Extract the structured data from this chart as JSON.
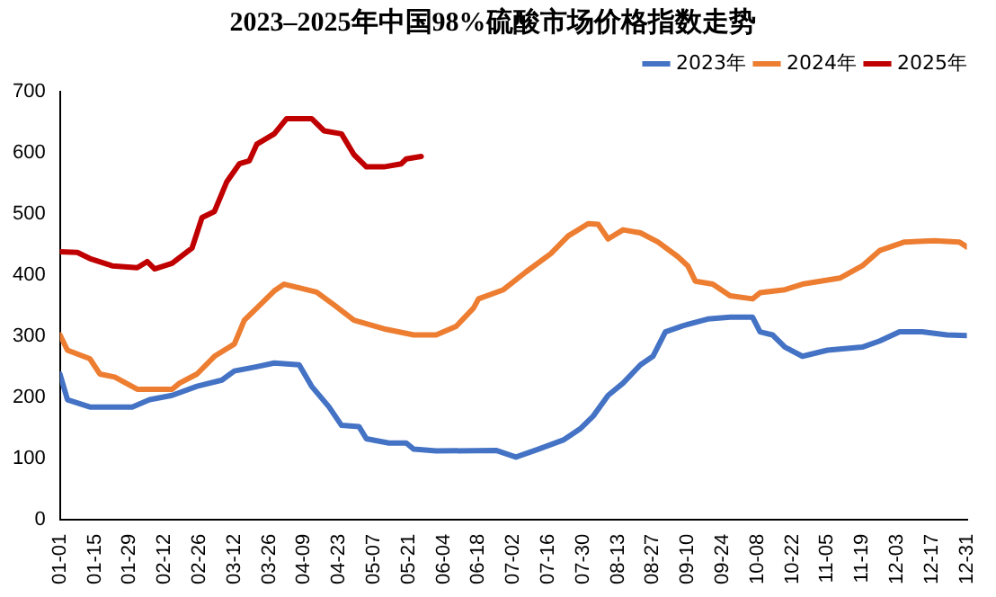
{
  "chart_data": {
    "type": "line",
    "title": "2023–2025年中国98%硫酸市场价格指数走势",
    "xlim": [
      "--01-01",
      "--12-31"
    ],
    "xticks": [
      {
        "value": "--01-01",
        "label": "01-01"
      },
      {
        "value": "--01-15",
        "label": "01-15"
      },
      {
        "value": "--01-29",
        "label": "01-29"
      },
      {
        "value": "--02-12",
        "label": "02-12"
      },
      {
        "value": "--02-26",
        "label": "02-26"
      },
      {
        "value": "--03-12",
        "label": "03-12"
      },
      {
        "value": "--03-26",
        "label": "03-26"
      },
      {
        "value": "--04-09",
        "label": "04-09"
      },
      {
        "value": "--04-23",
        "label": "04-23"
      },
      {
        "value": "--05-07",
        "label": "05-07"
      },
      {
        "value": "--05-21",
        "label": "05-21"
      },
      {
        "value": "--06-04",
        "label": "06-04"
      },
      {
        "value": "--06-18",
        "label": "06-18"
      },
      {
        "value": "--07-02",
        "label": "07-02"
      },
      {
        "value": "--07-16",
        "label": "07-16"
      },
      {
        "value": "--07-30",
        "label": "07-30"
      },
      {
        "value": "--08-13",
        "label": "08-13"
      },
      {
        "value": "--08-27",
        "label": "08-27"
      },
      {
        "value": "--09-10",
        "label": "09-10"
      },
      {
        "value": "--09-24",
        "label": "09-24"
      },
      {
        "value": "--10-08",
        "label": "10-08"
      },
      {
        "value": "--10-22",
        "label": "10-22"
      },
      {
        "value": "--11-05",
        "label": "11-05"
      },
      {
        "value": "--11-19",
        "label": "11-19"
      },
      {
        "value": "--12-03",
        "label": "12-03"
      },
      {
        "value": "--12-17",
        "label": "12-17"
      },
      {
        "value": "--12-31",
        "label": "12-31"
      }
    ],
    "ylim": [
      0,
      700
    ],
    "yticks": [
      0,
      100,
      200,
      300,
      400,
      500,
      600,
      700
    ],
    "grid": false,
    "legend": "top right",
    "marker": "none",
    "line_style": "solid",
    "series": [
      {
        "name": "2023年",
        "color": "#4472c4",
        "x": [
          "--01-01",
          "--01-04",
          "--01-13",
          "--01-30",
          "--02-06",
          "--02-15",
          "--02-25",
          "--03-07",
          "--03-12",
          "--03-21",
          "--03-28",
          "--04-07",
          "--04-12",
          "--04-19",
          "--04-24",
          "--05-01",
          "--05-04",
          "--05-13",
          "--05-20",
          "--05-23",
          "--06-01",
          "--06-25",
          "--07-03",
          "--07-12",
          "--07-22",
          "--07-29",
          "--08-03",
          "--08-09",
          "--08-15",
          "--08-22",
          "--08-27",
          "--09-01",
          "--09-08",
          "--09-18",
          "--09-27",
          "--10-06",
          "--10-09",
          "--10-14",
          "--10-19",
          "--10-26",
          "--11-05",
          "--11-19",
          "--11-26",
          "--12-04",
          "--12-13",
          "--12-23",
          "--12-31"
        ],
        "values": [
          238,
          196,
          184,
          184,
          196,
          203,
          218,
          228,
          243,
          250,
          256,
          253,
          218,
          184,
          154,
          152,
          132,
          125,
          125,
          115,
          112,
          113,
          102,
          115,
          130,
          149,
          169,
          203,
          223,
          253,
          267,
          307,
          317,
          328,
          331,
          331,
          307,
          302,
          282,
          267,
          277,
          282,
          292,
          307,
          307,
          302,
          301
        ]
      },
      {
        "name": "2024年",
        "color": "#ed7d31",
        "x": [
          "--01-01",
          "--01-04",
          "--01-13",
          "--01-17",
          "--01-23",
          "--02-01",
          "--02-15",
          "--02-18",
          "--02-25",
          "--03-04",
          "--03-12",
          "--03-16",
          "--03-21",
          "--03-28",
          "--04-01",
          "--04-07",
          "--04-14",
          "--04-21",
          "--04-29",
          "--05-11",
          "--05-23",
          "--06-01",
          "--06-09",
          "--06-16",
          "--06-18",
          "--06-28",
          "--07-07",
          "--07-17",
          "--07-24",
          "--08-01",
          "--08-05",
          "--08-09",
          "--08-15",
          "--08-22",
          "--08-29",
          "--09-06",
          "--09-10",
          "--09-13",
          "--09-20",
          "--09-27",
          "--10-06",
          "--10-09",
          "--10-19",
          "--10-26",
          "--11-10",
          "--11-19",
          "--11-26",
          "--12-06",
          "--12-18",
          "--12-28",
          "--12-31"
        ],
        "values": [
          302,
          277,
          263,
          238,
          233,
          213,
          213,
          223,
          238,
          267,
          287,
          326,
          346,
          374,
          385,
          379,
          372,
          351,
          326,
          312,
          302,
          302,
          316,
          346,
          361,
          376,
          405,
          435,
          464,
          484,
          483,
          459,
          474,
          469,
          454,
          430,
          415,
          390,
          385,
          366,
          361,
          371,
          376,
          385,
          395,
          415,
          440,
          454,
          456,
          454,
          446
        ]
      },
      {
        "name": "2025年",
        "color": "#c00000",
        "x": [
          "--01-01",
          "--01-08",
          "--01-13",
          "--01-22",
          "--02-01",
          "--02-05",
          "--02-08",
          "--02-15",
          "--02-23",
          "--02-27",
          "--03-04",
          "--03-09",
          "--03-14",
          "--03-18",
          "--03-21",
          "--03-28",
          "--04-02",
          "--04-12",
          "--04-17",
          "--04-24",
          "--04-29",
          "--05-04",
          "--05-11",
          "--05-18",
          "--05-20",
          "--05-26"
        ],
        "values": [
          438,
          437,
          427,
          415,
          412,
          422,
          410,
          419,
          444,
          494,
          504,
          553,
          582,
          587,
          614,
          631,
          656,
          656,
          636,
          631,
          597,
          577,
          577,
          582,
          590,
          594
        ]
      }
    ]
  }
}
